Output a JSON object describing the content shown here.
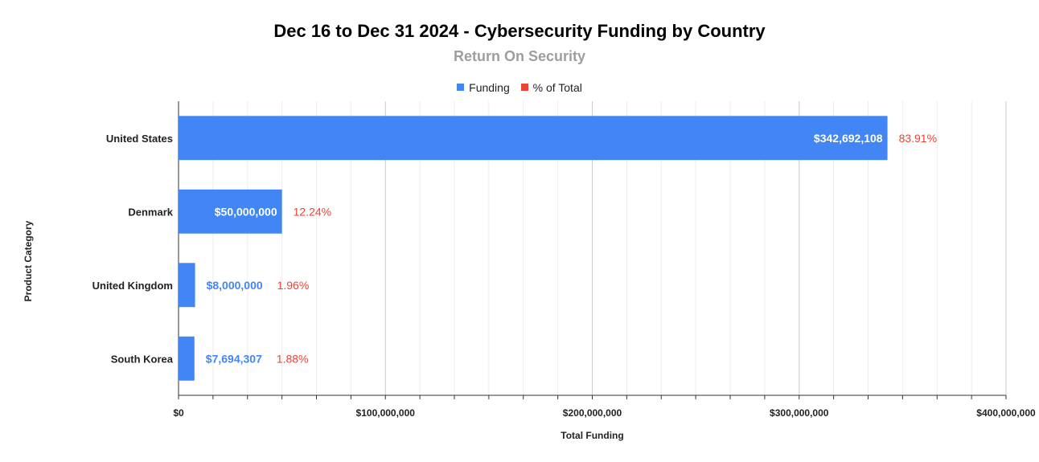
{
  "chart_data": {
    "type": "bar",
    "orientation": "horizontal",
    "title": "Dec 16 to Dec 31 2024 - Cybersecurity Funding by Country",
    "subtitle": "Return On Security",
    "xlabel": "Total Funding",
    "ylabel": "Product Category",
    "xlim": [
      0,
      400000000
    ],
    "x_ticks": [
      0,
      100000000,
      200000000,
      300000000,
      400000000
    ],
    "x_tick_labels": [
      "$0",
      "$100,000,000",
      "$200,000,000",
      "$300,000,000",
      "$400,000,000"
    ],
    "grid": true,
    "legend_position": "top",
    "categories": [
      "United States",
      "Denmark",
      "United Kingdom",
      "South Korea"
    ],
    "series": [
      {
        "name": "Funding",
        "color": "#4285f4",
        "values": [
          342692108,
          50000000,
          8000000,
          7694307
        ],
        "labels": [
          "$342,692,108",
          "$50,000,000",
          "$8,000,000",
          "$7,694,307"
        ]
      },
      {
        "name": "% of Total",
        "color": "#ea4335",
        "values": [
          83.91,
          12.24,
          1.96,
          1.88
        ],
        "labels": [
          "83.91%",
          "12.24%",
          "1.96%",
          "1.88%"
        ]
      }
    ]
  }
}
